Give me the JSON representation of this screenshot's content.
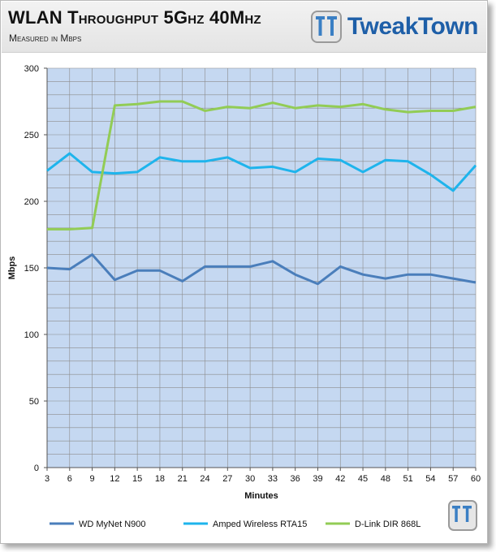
{
  "header": {
    "title": "WLAN Throughput  5Ghz 40Mhz",
    "subtitle": "Measured in Mbps",
    "brand": "TweakTown",
    "brand_icon": "tt-logo-icon"
  },
  "colors": {
    "plot_bg": "#c5d8f1",
    "grid": "#8c8c8c",
    "header_bg": "#e8e8e8"
  },
  "chart_data": {
    "type": "line",
    "xlabel": "Minutes",
    "ylabel": "Mbps",
    "ylim": [
      0,
      300
    ],
    "yticks": [
      0,
      50,
      100,
      150,
      200,
      250,
      300
    ],
    "x": [
      3,
      6,
      9,
      12,
      15,
      18,
      21,
      24,
      27,
      30,
      33,
      36,
      39,
      42,
      45,
      48,
      51,
      54,
      57,
      60
    ],
    "grid": true,
    "legend_position": "bottom",
    "series": [
      {
        "name": "WD MyNet N900",
        "color": "#4a7ebb",
        "values": [
          150,
          149,
          160,
          141,
          148,
          148,
          140,
          151,
          151,
          151,
          155,
          145,
          138,
          151,
          145,
          142,
          145,
          145,
          142,
          139
        ]
      },
      {
        "name": "Amped Wireless RTA15",
        "color": "#1eb4ec",
        "values": [
          223,
          236,
          222,
          221,
          222,
          233,
          230,
          230,
          233,
          225,
          226,
          222,
          232,
          231,
          222,
          231,
          230,
          220,
          208,
          227
        ]
      },
      {
        "name": "D-Link DIR 868L",
        "color": "#92cc55",
        "values": [
          179,
          179,
          180,
          272,
          273,
          275,
          275,
          268,
          271,
          270,
          274,
          270,
          272,
          271,
          273,
          269,
          267,
          268,
          268,
          271
        ]
      }
    ]
  }
}
